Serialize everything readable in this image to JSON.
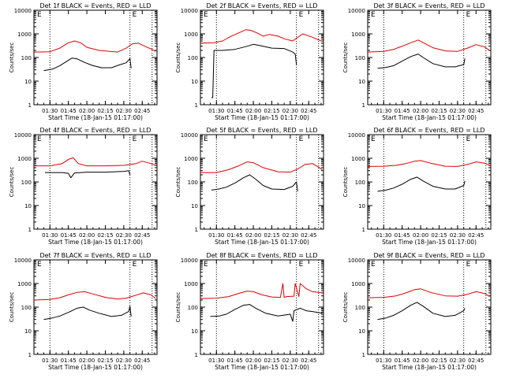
{
  "panel_titles": [
    "Det 1f BLACK = Events, RED = LLD",
    "Det 2f BLACK = Events, RED = LLD",
    "Det 3f BLACK = Events, RED = LLD",
    "Det 4f BLACK = Events, RED = LLD",
    "Det 5f BLACK = Events, RED = LLD",
    "Det 6f BLACK = Events, RED = LLD",
    "Det 7f BLACK = Events, RED = LLD",
    "Det 8f BLACK = Events, RED = LLD",
    "Det 9f BLACK = Events, RED = LLD"
  ],
  "xlabel": "Start Time (18-Jan-15 01:17:00)",
  "ylabel": "Counts/sec",
  "colors": {
    "events": "#000000",
    "lld": "#dd0000",
    "axes": "#000000"
  },
  "chart_data": [
    {
      "type": "line",
      "title": "Det 1f BLACK = Events, RED = LLD",
      "xlabel": "Start Time (18-Jan-15 01:17:00)",
      "ylabel": "Counts/sec",
      "xlim": [
        "01:17",
        "02:57"
      ],
      "ylim": [
        1,
        10000
      ],
      "yscale": "log",
      "xticks": [
        "01:30",
        "01:45",
        "02:00",
        "02:15",
        "02:30",
        "02:45"
      ],
      "yticks": [
        "1",
        "10",
        "100",
        "1000",
        "10000"
      ],
      "vlines": [
        "01:30",
        "02:35",
        "02:53"
      ],
      "markers": [
        "E",
        "E"
      ],
      "series": [
        {
          "name": "BLACK",
          "x": [
            "01:25",
            "01:32",
            "01:38",
            "01:44",
            "01:48",
            "01:52",
            "01:58",
            "02:05",
            "02:12",
            "02:20",
            "02:26",
            "02:32",
            "02:35",
            "02:36"
          ],
          "values": [
            28,
            32,
            45,
            70,
            95,
            88,
            62,
            45,
            37,
            37,
            48,
            60,
            90,
            35
          ]
        },
        {
          "name": "RED",
          "x": [
            "01:17",
            "01:30",
            "01:38",
            "01:45",
            "01:50",
            "01:55",
            "02:00",
            "02:10",
            "02:25",
            "02:32",
            "02:37",
            "02:42",
            "02:47",
            "02:52",
            "02:56"
          ],
          "values": [
            170,
            175,
            250,
            420,
            500,
            420,
            270,
            200,
            170,
            250,
            380,
            400,
            300,
            230,
            180
          ]
        }
      ]
    },
    {
      "type": "line",
      "title": "Det 2f BLACK = Events, RED = LLD",
      "xlabel": "Start Time (18-Jan-15 01:17:00)",
      "ylabel": "Counts/sec",
      "xlim": [
        "01:17",
        "02:57"
      ],
      "ylim": [
        1,
        10000
      ],
      "yscale": "log",
      "xticks": [
        "01:30",
        "01:45",
        "02:00",
        "02:15",
        "02:30",
        "02:45"
      ],
      "yticks": [
        "1",
        "10",
        "100",
        "1000",
        "10000"
      ],
      "vlines": [
        "01:30",
        "02:35",
        "02:53"
      ],
      "markers": [
        "E",
        "E"
      ],
      "series": [
        {
          "name": "BLACK",
          "x": [
            "01:26",
            "01:27",
            "01:28",
            "01:35",
            "01:45",
            "01:55",
            "02:00",
            "02:05",
            "02:15",
            "02:25",
            "02:32",
            "02:34",
            "02:35"
          ],
          "values": [
            2,
            2,
            200,
            200,
            220,
            300,
            360,
            320,
            250,
            240,
            170,
            140,
            50
          ]
        },
        {
          "name": "RED",
          "x": [
            "01:17",
            "01:28",
            "01:35",
            "01:42",
            "01:48",
            "01:54",
            "01:58",
            "02:03",
            "02:08",
            "02:13",
            "02:20",
            "02:26",
            "02:32",
            "02:36",
            "02:40",
            "02:47",
            "02:56"
          ],
          "values": [
            400,
            420,
            500,
            800,
            1100,
            1500,
            1400,
            1100,
            800,
            950,
            800,
            600,
            500,
            700,
            1000,
            750,
            480
          ]
        }
      ]
    },
    {
      "type": "line",
      "title": "Det 3f BLACK = Events, RED = LLD",
      "xlabel": "Start Time (18-Jan-15 01:17:00)",
      "ylabel": "Counts/sec",
      "xlim": [
        "01:17",
        "02:57"
      ],
      "ylim": [
        1,
        10000
      ],
      "yscale": "log",
      "xticks": [
        "01:30",
        "01:45",
        "02:00",
        "02:15",
        "02:30",
        "02:45"
      ],
      "yticks": [
        "1",
        "10",
        "100",
        "1000",
        "10000"
      ],
      "vlines": [
        "01:30",
        "02:35",
        "02:53"
      ],
      "markers": [
        "E",
        "E"
      ],
      "series": [
        {
          "name": "BLACK",
          "x": [
            "01:25",
            "01:32",
            "01:38",
            "01:45",
            "01:52",
            "01:58",
            "02:02",
            "02:10",
            "02:20",
            "02:28",
            "02:35",
            "02:36"
          ],
          "values": [
            35,
            38,
            45,
            70,
            110,
            140,
            100,
            55,
            40,
            40,
            50,
            90
          ]
        },
        {
          "name": "RED",
          "x": [
            "01:17",
            "01:30",
            "01:38",
            "01:45",
            "01:52",
            "01:58",
            "02:03",
            "02:10",
            "02:20",
            "02:30",
            "02:38",
            "02:45",
            "02:52",
            "02:56"
          ],
          "values": [
            170,
            180,
            220,
            300,
            420,
            550,
            400,
            260,
            190,
            180,
            250,
            350,
            280,
            200
          ]
        }
      ]
    },
    {
      "type": "line",
      "title": "Det 4f BLACK = Events, RED = LLD",
      "xlabel": "Start Time (18-Jan-15 01:17:00)",
      "ylabel": "Counts/sec",
      "xlim": [
        "01:17",
        "02:57"
      ],
      "ylim": [
        1,
        10000
      ],
      "yscale": "log",
      "xticks": [
        "01:30",
        "01:45",
        "02:00",
        "02:15",
        "02:30",
        "02:45"
      ],
      "yticks": [
        "1",
        "10",
        "100",
        "1000",
        "10000"
      ],
      "vlines": [
        "01:30",
        "02:35",
        "02:53"
      ],
      "markers": [
        "E",
        "E"
      ],
      "series": [
        {
          "name": "BLACK",
          "x": [
            "01:26",
            "01:35",
            "01:40",
            "01:45",
            "01:47",
            "01:50",
            "02:00",
            "02:15",
            "02:30",
            "02:34",
            "02:35"
          ],
          "values": [
            250,
            250,
            250,
            230,
            150,
            240,
            260,
            260,
            280,
            300,
            200
          ]
        },
        {
          "name": "RED",
          "x": [
            "01:17",
            "01:30",
            "01:40",
            "01:45",
            "01:49",
            "01:53",
            "02:00",
            "02:15",
            "02:30",
            "02:40",
            "02:45",
            "02:52",
            "02:56"
          ],
          "values": [
            480,
            480,
            600,
            900,
            1050,
            600,
            480,
            480,
            500,
            600,
            750,
            600,
            500
          ]
        }
      ]
    },
    {
      "type": "line",
      "title": "Det 5f BLACK = Events, RED = LLD",
      "xlabel": "Start Time (18-Jan-15 01:17:00)",
      "ylabel": "Counts/sec",
      "xlim": [
        "01:17",
        "02:57"
      ],
      "ylim": [
        1,
        10000
      ],
      "yscale": "log",
      "xticks": [
        "01:30",
        "01:45",
        "02:00",
        "02:15",
        "02:30",
        "02:45"
      ],
      "yticks": [
        "1",
        "10",
        "100",
        "1000",
        "10000"
      ],
      "vlines": [
        "01:30",
        "02:35",
        "02:53"
      ],
      "markers": [
        "E",
        "E"
      ],
      "series": [
        {
          "name": "BLACK",
          "x": [
            "01:26",
            "01:32",
            "01:38",
            "01:45",
            "01:52",
            "01:57",
            "02:02",
            "02:08",
            "02:15",
            "02:25",
            "02:32",
            "02:35",
            "02:36"
          ],
          "values": [
            45,
            50,
            60,
            90,
            150,
            200,
            130,
            70,
            50,
            48,
            65,
            100,
            40
          ]
        },
        {
          "name": "RED",
          "x": [
            "01:17",
            "01:30",
            "01:40",
            "01:48",
            "01:55",
            "02:00",
            "02:08",
            "02:20",
            "02:30",
            "02:36",
            "02:42",
            "02:48",
            "02:53",
            "02:56"
          ],
          "values": [
            250,
            250,
            330,
            480,
            700,
            650,
            400,
            270,
            260,
            350,
            550,
            600,
            420,
            330
          ]
        }
      ]
    },
    {
      "type": "line",
      "title": "Det 6f BLACK = Events, RED = LLD",
      "xlabel": "Start Time (18-Jan-15 01:17:00)",
      "ylabel": "Counts/sec",
      "xlim": [
        "01:17",
        "02:57"
      ],
      "ylim": [
        1,
        10000
      ],
      "yscale": "log",
      "xticks": [
        "01:30",
        "01:45",
        "02:00",
        "02:15",
        "02:30",
        "02:45"
      ],
      "yticks": [
        "1",
        "10",
        "100",
        "1000",
        "10000"
      ],
      "vlines": [
        "01:30",
        "02:35",
        "02:53"
      ],
      "markers": [
        "E",
        "E"
      ],
      "series": [
        {
          "name": "BLACK",
          "x": [
            "01:25",
            "01:32",
            "01:38",
            "01:45",
            "01:52",
            "01:57",
            "02:02",
            "02:10",
            "02:20",
            "02:28",
            "02:35",
            "02:36"
          ],
          "values": [
            40,
            45,
            55,
            80,
            130,
            160,
            110,
            65,
            50,
            50,
            70,
            110
          ]
        },
        {
          "name": "RED",
          "x": [
            "01:17",
            "01:30",
            "01:40",
            "01:48",
            "01:55",
            "02:00",
            "02:08",
            "02:20",
            "02:30",
            "02:38",
            "02:45",
            "02:52",
            "02:56"
          ],
          "values": [
            450,
            460,
            500,
            600,
            750,
            800,
            620,
            460,
            450,
            550,
            700,
            620,
            500
          ]
        }
      ]
    },
    {
      "type": "line",
      "title": "Det 7f BLACK = Events, RED = LLD",
      "xlabel": "Start Time (18-Jan-15 01:17:00)",
      "ylabel": "Counts/sec",
      "xlim": [
        "01:17",
        "02:57"
      ],
      "ylim": [
        1,
        10000
      ],
      "yscale": "log",
      "xticks": [
        "01:30",
        "01:45",
        "02:00",
        "02:15",
        "02:30",
        "02:45"
      ],
      "yticks": [
        "1",
        "10",
        "100",
        "1000",
        "10000"
      ],
      "vlines": [
        "01:30",
        "02:35",
        "02:53"
      ],
      "markers": [
        "E",
        "E"
      ],
      "series": [
        {
          "name": "BLACK",
          "x": [
            "01:25",
            "01:32",
            "01:38",
            "01:45",
            "01:52",
            "01:57",
            "02:02",
            "02:10",
            "02:20",
            "02:28",
            "02:34",
            "02:35",
            "02:36"
          ],
          "values": [
            30,
            35,
            42,
            60,
            90,
            100,
            75,
            55,
            40,
            45,
            65,
            110,
            40
          ]
        },
        {
          "name": "RED",
          "x": [
            "01:17",
            "01:30",
            "01:38",
            "01:45",
            "01:52",
            "01:58",
            "02:05",
            "02:15",
            "02:25",
            "02:32",
            "02:40",
            "02:46",
            "02:52",
            "02:56"
          ],
          "values": [
            200,
            210,
            250,
            330,
            420,
            450,
            360,
            260,
            220,
            240,
            320,
            400,
            330,
            230
          ]
        }
      ]
    },
    {
      "type": "line",
      "title": "Det 8f BLACK = Events, RED = LLD",
      "xlabel": "Start Time (18-Jan-15 01:17:00)",
      "ylabel": "Counts/sec",
      "xlim": [
        "01:17",
        "02:57"
      ],
      "ylim": [
        1,
        10000
      ],
      "yscale": "log",
      "xticks": [
        "01:30",
        "01:45",
        "02:00",
        "02:15",
        "02:30",
        "02:45"
      ],
      "yticks": [
        "1",
        "10",
        "100",
        "1000",
        "10000"
      ],
      "vlines": [
        "01:30",
        "02:35",
        "02:53"
      ],
      "markers": [
        "E",
        "E"
      ],
      "series": [
        {
          "name": "BLACK",
          "x": [
            "01:25",
            "01:32",
            "01:38",
            "01:45",
            "01:52",
            "01:57",
            "02:02",
            "02:10",
            "02:20",
            "02:30",
            "02:32",
            "02:33",
            "02:38",
            "02:43",
            "02:48",
            "02:56"
          ],
          "values": [
            40,
            42,
            50,
            80,
            120,
            130,
            90,
            55,
            42,
            50,
            25,
            70,
            90,
            70,
            65,
            55
          ]
        },
        {
          "name": "RED",
          "x": [
            "01:17",
            "01:30",
            "01:40",
            "01:48",
            "01:55",
            "02:00",
            "02:07",
            "02:15",
            "02:22",
            "02:24",
            "02:25",
            "02:27",
            "02:33",
            "02:34",
            "02:37",
            "02:38",
            "02:43",
            "02:48",
            "02:56"
          ],
          "values": [
            230,
            240,
            280,
            380,
            480,
            450,
            330,
            270,
            260,
            1000,
            260,
            280,
            290,
            1000,
            280,
            1000,
            600,
            450,
            400
          ]
        }
      ]
    },
    {
      "type": "line",
      "title": "Det 9f BLACK = Events, RED = LLD",
      "xlabel": "Start Time (18-Jan-15 01:17:00)",
      "ylabel": "Counts/sec",
      "xlim": [
        "01:17",
        "02:57"
      ],
      "ylim": [
        1,
        10000
      ],
      "yscale": "log",
      "xticks": [
        "01:30",
        "01:45",
        "02:00",
        "02:15",
        "02:30",
        "02:45"
      ],
      "yticks": [
        "1",
        "10",
        "100",
        "1000",
        "10000"
      ],
      "vlines": [
        "01:30",
        "02:35",
        "02:53"
      ],
      "markers": [
        "E",
        "E"
      ],
      "series": [
        {
          "name": "BLACK",
          "x": [
            "01:25",
            "01:32",
            "01:38",
            "01:45",
            "01:52",
            "01:57",
            "02:02",
            "02:10",
            "02:20",
            "02:28",
            "02:35",
            "02:36"
          ],
          "values": [
            30,
            35,
            45,
            70,
            120,
            160,
            110,
            55,
            40,
            45,
            70,
            90
          ]
        },
        {
          "name": "RED",
          "x": [
            "01:17",
            "01:30",
            "01:40",
            "01:48",
            "01:55",
            "02:00",
            "02:08",
            "02:20",
            "02:30",
            "02:38",
            "02:45",
            "02:52",
            "02:56"
          ],
          "values": [
            250,
            260,
            300,
            400,
            550,
            600,
            420,
            300,
            290,
            350,
            450,
            380,
            280
          ]
        }
      ]
    }
  ]
}
